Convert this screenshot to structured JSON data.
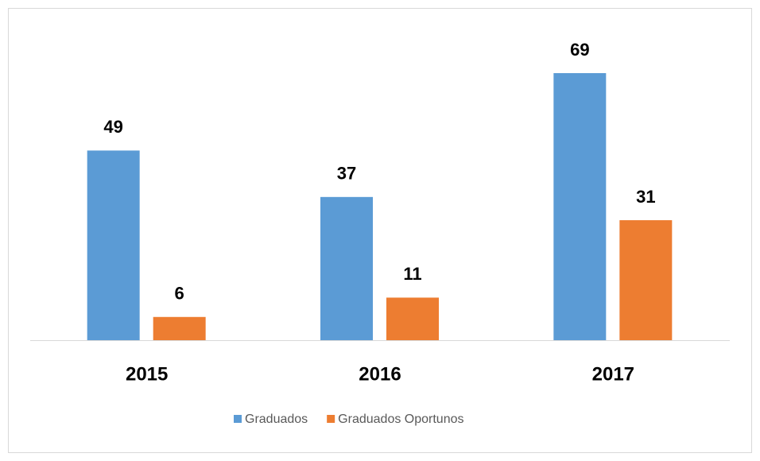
{
  "chart_data": {
    "type": "bar",
    "categories": [
      "2015",
      "2016",
      "2017"
    ],
    "series": [
      {
        "name": "Graduados",
        "color": "#5b9bd5",
        "values": [
          49,
          37,
          69
        ]
      },
      {
        "name": "Graduados Oportunos",
        "color": "#ed7d31",
        "values": [
          6,
          11,
          31
        ]
      }
    ],
    "legend": "bottom"
  }
}
